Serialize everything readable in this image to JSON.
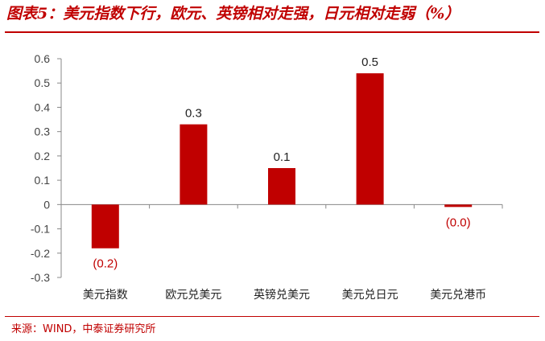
{
  "title": "图表5：美元指数下行，欧元、英镑相对走强，日元相对走弱（%）",
  "source": "来源：WIND，中泰证券研究所",
  "colors": {
    "accent": "#c00000",
    "bar": "#c00000",
    "negative_label": "#c00000",
    "positive_label": "#222222"
  },
  "chart_data": {
    "type": "bar",
    "categories": [
      "美元指数",
      "欧元兑美元",
      "英镑兑美元",
      "美元兑日元",
      "美元兑港币"
    ],
    "values": [
      -0.18,
      0.33,
      0.15,
      0.54,
      -0.01
    ],
    "data_labels": [
      "(0.2)",
      "0.3",
      "0.1",
      "0.5",
      "(0.0)"
    ],
    "yticks": [
      "0.6",
      "0.5",
      "0.4",
      "0.3",
      "0.2",
      "0.1",
      "0",
      "-0.1",
      "-0.2",
      "-0.3"
    ],
    "ylim": [
      -0.3,
      0.6
    ],
    "grid": false,
    "legend": "none",
    "title": "",
    "xlabel": "",
    "ylabel": ""
  }
}
